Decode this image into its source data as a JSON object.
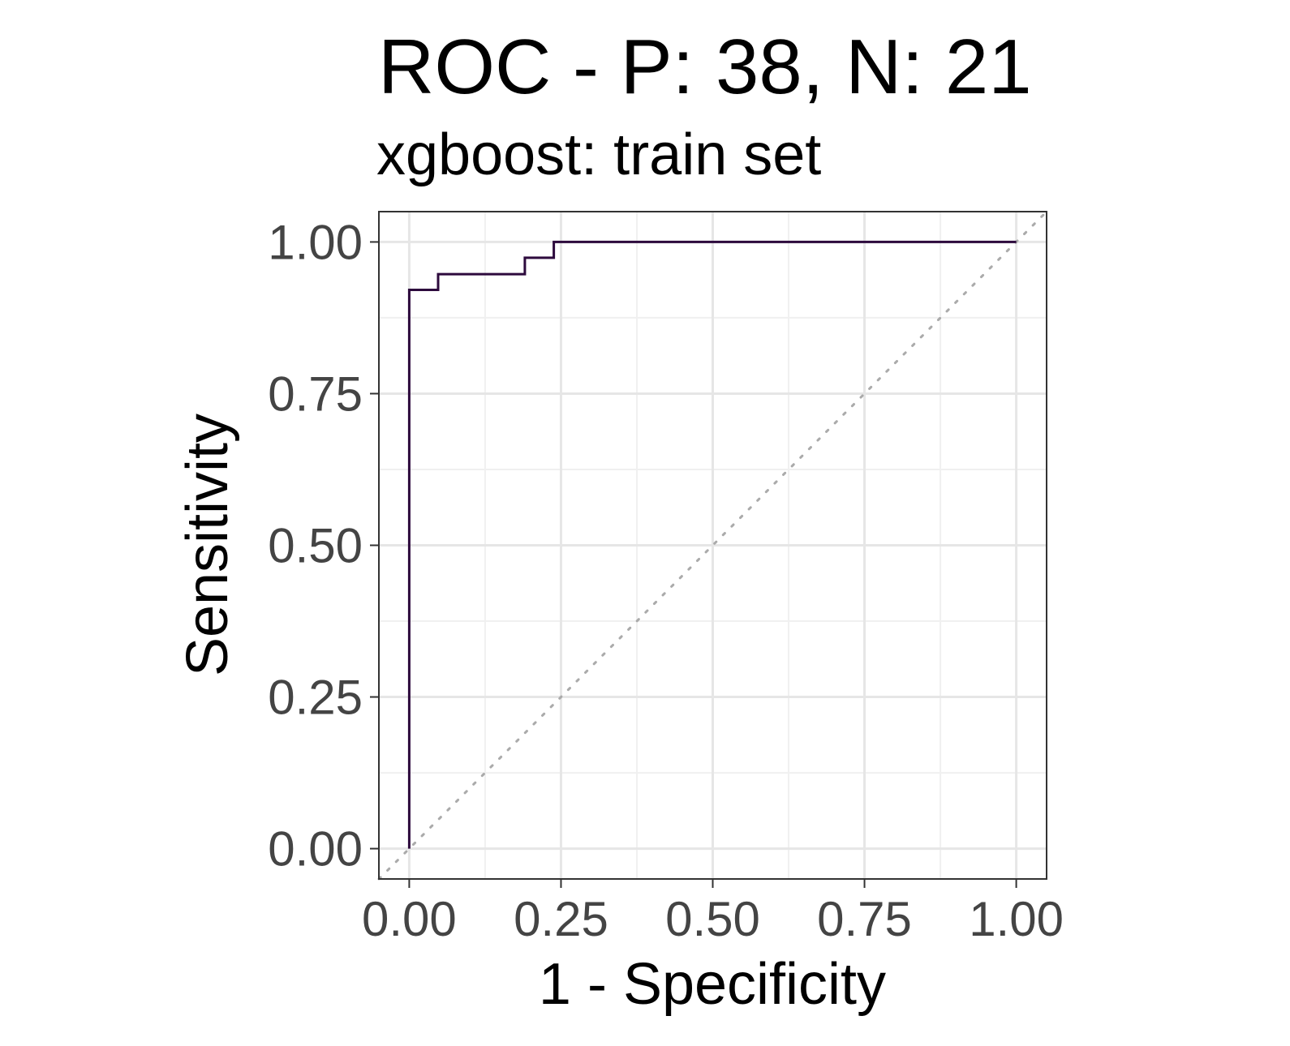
{
  "chart_data": {
    "type": "line",
    "title": "ROC - P: 38, N: 21",
    "subtitle": "xgboost: train set",
    "xlabel": "1 - Specificity",
    "ylabel": "Sensitivity",
    "xlim": [
      -0.05,
      1.05
    ],
    "ylim": [
      -0.05,
      1.05
    ],
    "x_ticks": [
      0,
      0.25,
      0.5,
      0.75,
      1
    ],
    "y_ticks": [
      0,
      0.25,
      0.5,
      0.75,
      1
    ],
    "x_tick_labels": [
      "0.00",
      "0.25",
      "0.50",
      "0.75",
      "1.00"
    ],
    "y_tick_labels": [
      "0.00",
      "0.25",
      "0.50",
      "0.75",
      "1.00"
    ],
    "grid": true,
    "diagonal_reference": true,
    "series": [
      {
        "color": "#2d0a3d",
        "x": [
          0,
          0,
          0.0476,
          0.0476,
          0.1905,
          0.1905,
          0.2381,
          0.2381,
          1.0
        ],
        "y": [
          0,
          0.921,
          0.921,
          0.947,
          0.947,
          0.974,
          0.974,
          1.0,
          1.0
        ]
      }
    ],
    "colors": {
      "panel_border": "#333333",
      "grid_major": "#e6e6e6",
      "grid_minor": "#f0f0f0",
      "diagonal": "#aaaaaa",
      "tick_label": "#444444"
    }
  }
}
